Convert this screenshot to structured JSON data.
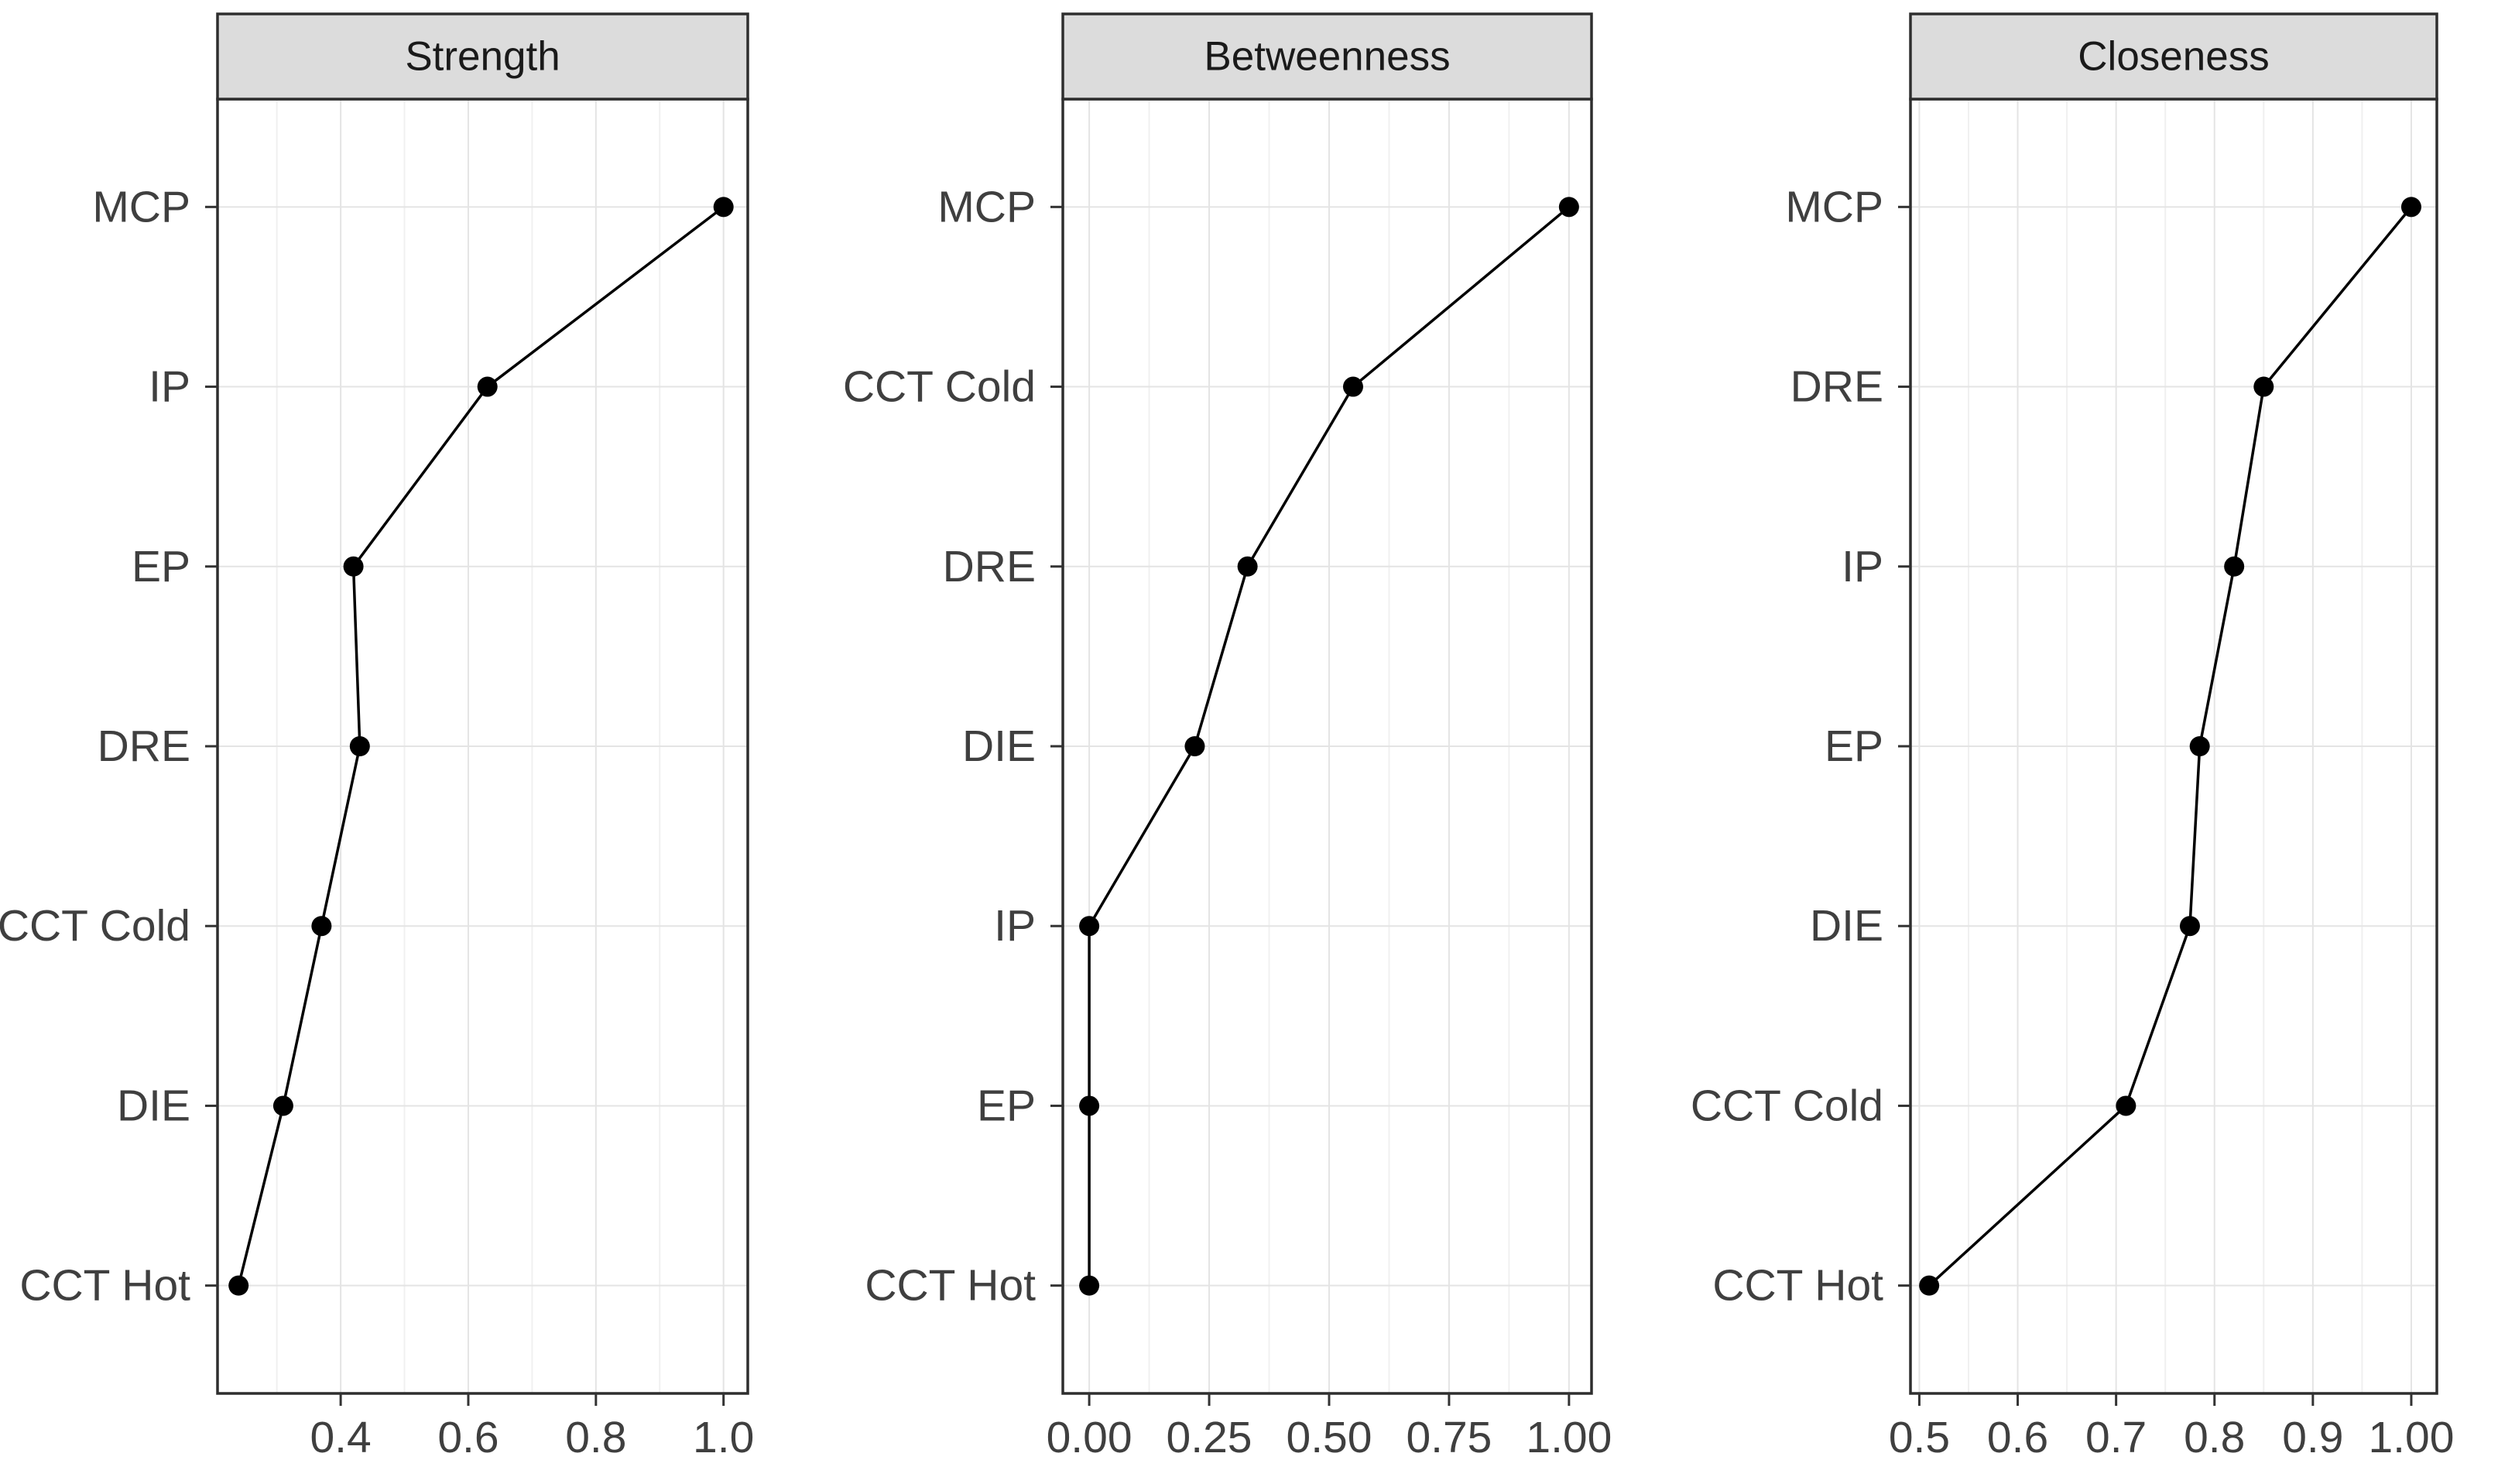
{
  "figure": {
    "title": "",
    "background": "#ffffff",
    "colors": {
      "strip_bg": "#DCDCDC",
      "panel_bg": "#FFFFFF",
      "panel_border": "#2E2E2E",
      "grid_major": "#E4E4E4",
      "grid_minor": "#F0F0F0",
      "tick_mark": "#333333",
      "axis_text": "#3F3F3F",
      "strip_text": "#1A1A1A",
      "data_point": "#000000",
      "data_line": "#000000"
    }
  },
  "chart_data": {
    "type": "line",
    "subtype": "horizontal-dot-line-facets",
    "grid": "on",
    "legend": "none",
    "xlabel": "",
    "ylabel": "",
    "panels": [
      {
        "title": "Strength",
        "categories": [
          "MCP",
          "IP",
          "EP",
          "DRE",
          "CCT Cold",
          "DIE",
          "CCT Hot"
        ],
        "values": [
          1.0,
          0.63,
          0.42,
          0.43,
          0.37,
          0.31,
          0.24
        ],
        "xlim": [
          0.207,
          1.038
        ],
        "x_tick_values": [
          0.4,
          0.6,
          0.8,
          1.0
        ],
        "x_tick_labels": [
          "0.4",
          "0.6",
          "0.8",
          "1.0"
        ],
        "x_minor_values": [
          0.3,
          0.5,
          0.7,
          0.9
        ]
      },
      {
        "title": "Betweenness",
        "categories": [
          "MCP",
          "CCT Cold",
          "DRE",
          "DIE",
          "IP",
          "EP",
          "CCT Hot"
        ],
        "values": [
          1.0,
          0.55,
          0.33,
          0.22,
          0.0,
          0.0,
          0.0
        ],
        "xlim": [
          -0.055,
          1.047
        ],
        "x_tick_values": [
          0.0,
          0.25,
          0.5,
          0.75,
          1.0
        ],
        "x_tick_labels": [
          "0.00",
          "0.25",
          "0.50",
          "0.75",
          "1.00"
        ],
        "x_minor_values": [
          0.125,
          0.375,
          0.625,
          0.875
        ]
      },
      {
        "title": "Closeness",
        "categories": [
          "MCP",
          "DRE",
          "IP",
          "EP",
          "DIE",
          "CCT Cold",
          "CCT Hot"
        ],
        "values": [
          1.0,
          0.85,
          0.82,
          0.785,
          0.775,
          0.71,
          0.51
        ],
        "xlim": [
          0.491,
          1.026
        ],
        "x_tick_values": [
          0.5,
          0.6,
          0.7,
          0.8,
          0.9,
          1.0
        ],
        "x_tick_labels": [
          "0.5",
          "0.6",
          "0.7",
          "0.8",
          "0.9",
          "1.00"
        ],
        "x_minor_values": [
          0.55,
          0.65,
          0.75,
          0.85,
          0.95
        ]
      }
    ]
  }
}
